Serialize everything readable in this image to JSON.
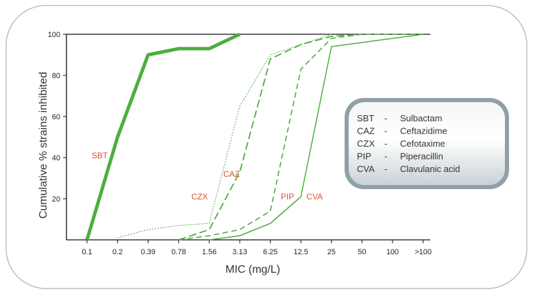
{
  "chart_data": {
    "type": "line",
    "xlabel": "MIC (mg/L)",
    "ylabel": "Cumulative % strains inhibited",
    "x_categories": [
      "0.1",
      "0.2",
      "0.39",
      "0.78",
      "1.56",
      "3.13",
      "6.25",
      "12.5",
      "25",
      "50",
      "100",
      ">100"
    ],
    "yticks": [
      "0",
      "20",
      "40",
      "60",
      "80",
      "100"
    ],
    "ylim": [
      0,
      100
    ],
    "grid": false,
    "label_color": "#d9532c",
    "line_color": "#4cae3e",
    "series": [
      {
        "name": "SBT",
        "style": "thick-solid",
        "x": [
          "0.1",
          "0.2",
          "0.39",
          "0.78",
          "1.56",
          "3.13"
        ],
        "y": [
          0,
          50,
          90,
          93,
          93,
          100
        ],
        "label": {
          "text": "SBT",
          "at_x": "0.2",
          "at_y": 41
        }
      },
      {
        "name": "CZX",
        "style": "dotted",
        "x": [
          "0.2",
          "0.39",
          "0.78",
          "1.56",
          "3.13",
          "6.25",
          "12.5",
          "25"
        ],
        "y": [
          1,
          5,
          7,
          8,
          65,
          90,
          95,
          100
        ],
        "label": {
          "text": "CZX",
          "at_x": "1.56",
          "at_y": 21
        }
      },
      {
        "name": "CAZ",
        "style": "long-dash",
        "x": [
          "0.78",
          "1.56",
          "3.13",
          "6.25",
          "12.5",
          "25",
          "50"
        ],
        "y": [
          0,
          5,
          33,
          88,
          95,
          99,
          100
        ],
        "label": {
          "text": "CAZ",
          "at_x": "3.13",
          "at_y": 32
        }
      },
      {
        "name": "PIP",
        "style": "dash",
        "x": [
          "0.78",
          "1.56",
          "3.13",
          "6.25",
          "12.5",
          "25",
          "50",
          ">100"
        ],
        "y": [
          0,
          2,
          5,
          14,
          83,
          98,
          100,
          100
        ],
        "label": {
          "text": "PIP",
          "at_x": "6.25",
          "at_y": 21
        }
      },
      {
        "name": "CVA",
        "style": "solid",
        "x": [
          "1.56",
          "3.13",
          "6.25",
          "12.5",
          "25",
          "50",
          ">100"
        ],
        "y": [
          0,
          2,
          8,
          21,
          94,
          96,
          100
        ],
        "label": {
          "text": "CVA",
          "at_x": "12.5",
          "at_y": 21
        }
      }
    ],
    "legend": {
      "placement": "right",
      "items": [
        {
          "abbr": "SBT",
          "dash": "-",
          "name": "Sulbactam"
        },
        {
          "abbr": "CAZ",
          "dash": "-",
          "name": "Ceftazidime"
        },
        {
          "abbr": "CZX",
          "dash": "-",
          "name": "Cefotaxime"
        },
        {
          "abbr": "PIP",
          "dash": "-",
          "name": "Piperacillin"
        },
        {
          "abbr": "CVA",
          "dash": "-",
          "name": "Clavulanic acid"
        }
      ]
    }
  }
}
